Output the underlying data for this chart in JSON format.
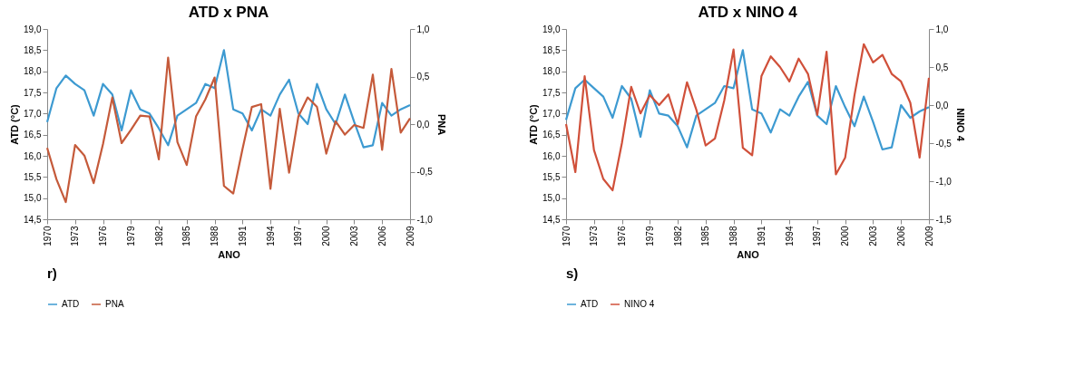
{
  "chart_data": [
    {
      "type": "line",
      "title": "ATD x PNA",
      "xlabel": "ANO",
      "ylabel": "ATD (°C)",
      "y2label": "PNA",
      "x": [
        1970,
        1971,
        1972,
        1973,
        1974,
        1975,
        1976,
        1977,
        1978,
        1979,
        1980,
        1981,
        1982,
        1983,
        1984,
        1985,
        1986,
        1987,
        1988,
        1989,
        1990,
        1991,
        1992,
        1993,
        1994,
        1995,
        1996,
        1997,
        1998,
        1999,
        2000,
        2001,
        2002,
        2003,
        2004,
        2005,
        2006,
        2007,
        2008,
        2009
      ],
      "xlim": [
        1970,
        2009
      ],
      "xticks": [
        1970,
        1973,
        1976,
        1979,
        1982,
        1985,
        1988,
        1991,
        1994,
        1997,
        2000,
        2003,
        2006,
        2009
      ],
      "ylim": [
        14.5,
        19.0
      ],
      "yticks": [
        {
          "value": 14.5,
          "label": "14,5"
        },
        {
          "value": 15.0,
          "label": "15,0"
        },
        {
          "value": 15.5,
          "label": "15,5"
        },
        {
          "value": 16.0,
          "label": "16,0"
        },
        {
          "value": 16.5,
          "label": "16,5"
        },
        {
          "value": 17.0,
          "label": "17,0"
        },
        {
          "value": 17.5,
          "label": "17,5"
        },
        {
          "value": 18.0,
          "label": "18,0"
        },
        {
          "value": 18.5,
          "label": "18,5"
        },
        {
          "value": 19.0,
          "label": "19,0"
        }
      ],
      "y2lim": [
        -1.0,
        1.0
      ],
      "y2ticks": [
        {
          "value": -1.0,
          "label": "-1,0"
        },
        {
          "value": -0.5,
          "label": "-0,5"
        },
        {
          "value": 0.0,
          "label": "0,0"
        },
        {
          "value": 0.5,
          "label": "0,5"
        },
        {
          "value": 1.0,
          "label": "1,0"
        }
      ],
      "series": [
        {
          "name": "ATD",
          "color": "#3d9ad1",
          "values": [
            16.8,
            17.6,
            17.9,
            17.7,
            17.55,
            16.95,
            17.7,
            17.45,
            16.6,
            17.55,
            17.1,
            17.0,
            16.65,
            16.25,
            16.95,
            17.1,
            17.25,
            17.7,
            17.6,
            18.5,
            17.1,
            17.0,
            16.6,
            17.1,
            16.95,
            17.45,
            17.8,
            17.0,
            16.75,
            17.7,
            17.1,
            16.75,
            17.45,
            16.8,
            16.2,
            16.25,
            17.25,
            16.95,
            17.1,
            17.2
          ]
        },
        {
          "name": "PNA",
          "color": "#c55a3a",
          "axis": "y2",
          "values": [
            -0.25,
            -0.58,
            -0.82,
            -0.22,
            -0.33,
            -0.62,
            -0.21,
            0.28,
            -0.2,
            -0.06,
            0.09,
            0.08,
            -0.37,
            0.7,
            -0.19,
            -0.43,
            0.08,
            0.26,
            0.49,
            -0.65,
            -0.73,
            -0.26,
            0.18,
            0.21,
            -0.68,
            0.16,
            -0.51,
            0.08,
            0.28,
            0.18,
            -0.31,
            0.03,
            -0.11,
            -0.01,
            -0.04,
            0.52,
            -0.27,
            0.58,
            -0.09,
            0.06
          ]
        }
      ],
      "legend": "bottom",
      "grid": false,
      "annotations": [
        "r)"
      ]
    },
    {
      "type": "line",
      "title": "ATD x NINO 4",
      "xlabel": "ANO",
      "ylabel": "ATD (°C)",
      "y2label": "NINO 4",
      "x": [
        1970,
        1971,
        1972,
        1973,
        1974,
        1975,
        1976,
        1977,
        1978,
        1979,
        1980,
        1981,
        1982,
        1983,
        1984,
        1985,
        1986,
        1987,
        1988,
        1989,
        1990,
        1991,
        1992,
        1993,
        1994,
        1995,
        1996,
        1997,
        1998,
        1999,
        2000,
        2001,
        2002,
        2003,
        2004,
        2005,
        2006,
        2007,
        2008,
        2009
      ],
      "xlim": [
        1970,
        2009
      ],
      "xticks": [
        1970,
        1973,
        1976,
        1979,
        1982,
        1985,
        1988,
        1991,
        1994,
        1997,
        2000,
        2003,
        2006,
        2009
      ],
      "ylim": [
        14.5,
        19.0
      ],
      "yticks": [
        {
          "value": 14.5,
          "label": "14,5"
        },
        {
          "value": 15.0,
          "label": "15,0"
        },
        {
          "value": 15.5,
          "label": "15,5"
        },
        {
          "value": 16.0,
          "label": "16,0"
        },
        {
          "value": 16.5,
          "label": "16,5"
        },
        {
          "value": 17.0,
          "label": "17,0"
        },
        {
          "value": 17.5,
          "label": "17,5"
        },
        {
          "value": 18.0,
          "label": "18,0"
        },
        {
          "value": 18.5,
          "label": "18,5"
        },
        {
          "value": 19.0,
          "label": "19,0"
        }
      ],
      "y2lim": [
        -1.5,
        1.0
      ],
      "y2ticks": [
        {
          "value": -1.5,
          "label": "-1,5"
        },
        {
          "value": -1.0,
          "label": "-1,0"
        },
        {
          "value": -0.5,
          "label": "-0,5"
        },
        {
          "value": 0.0,
          "label": "0,0"
        },
        {
          "value": 0.5,
          "label": "0,5"
        },
        {
          "value": 1.0,
          "label": "1,0"
        }
      ],
      "series": [
        {
          "name": "ATD",
          "color": "#3d9ad1",
          "values": [
            16.85,
            17.6,
            17.8,
            17.6,
            17.4,
            16.9,
            17.65,
            17.35,
            16.45,
            17.55,
            17.0,
            16.95,
            16.7,
            16.2,
            16.95,
            17.1,
            17.25,
            17.65,
            17.6,
            18.5,
            17.1,
            17.0,
            16.55,
            17.1,
            16.95,
            17.4,
            17.75,
            16.95,
            16.75,
            17.65,
            17.15,
            16.7,
            17.4,
            16.8,
            16.15,
            16.2,
            17.2,
            16.9,
            17.05,
            17.15
          ]
        },
        {
          "name": "NINO 4",
          "color": "#d0503a",
          "axis": "y2",
          "values": [
            -0.25,
            -0.88,
            0.38,
            -0.59,
            -0.97,
            -1.12,
            -0.5,
            0.24,
            -0.11,
            0.13,
            0.0,
            0.14,
            -0.25,
            0.3,
            -0.06,
            -0.53,
            -0.44,
            0.06,
            0.73,
            -0.56,
            -0.66,
            0.38,
            0.64,
            0.5,
            0.31,
            0.61,
            0.41,
            -0.13,
            0.7,
            -0.91,
            -0.69,
            0.13,
            0.8,
            0.56,
            0.66,
            0.41,
            0.31,
            0.03,
            -0.69,
            0.36
          ]
        }
      ],
      "legend": "bottom",
      "grid": false,
      "annotations": [
        "s)"
      ]
    }
  ]
}
